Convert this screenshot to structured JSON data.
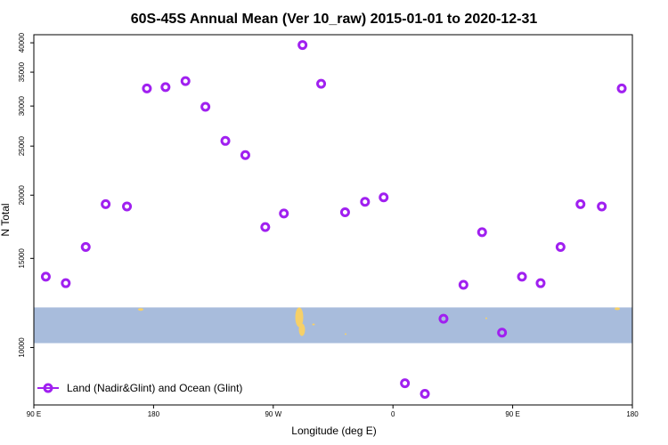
{
  "chart_data": {
    "type": "scatter",
    "title": "60S-45S Annual Mean (Ver 10_raw)   2015-01-01 to 2020-12-31",
    "xlabel": "Longitude (deg E)",
    "ylabel": "N Total",
    "x_ticks": [
      {
        "value": 90,
        "label": "90 E"
      },
      {
        "value": 180,
        "label": "180"
      },
      {
        "value": 270,
        "label": "90 W"
      },
      {
        "value": 360,
        "label": "0"
      },
      {
        "value": 450,
        "label": "90 E"
      },
      {
        "value": 540,
        "label": "180"
      }
    ],
    "y_ticks": [
      10000,
      15000,
      20000,
      25000,
      30000,
      35000,
      40000
    ],
    "xlim": [
      90,
      540
    ],
    "ylim": [
      7700,
      41500
    ],
    "y_scale": "log",
    "map_band_range": [
      10200,
      12000
    ],
    "map_band_color": "#a8bcdc",
    "land_color": "#f6d068",
    "series": [
      {
        "name": "Land (Nadir&Glint) and Ocean (Glint)",
        "color": "#a020f0",
        "points": [
          {
            "x": 99,
            "y": 13800
          },
          {
            "x": 114,
            "y": 13400
          },
          {
            "x": 129,
            "y": 15800
          },
          {
            "x": 144,
            "y": 19200
          },
          {
            "x": 160,
            "y": 19000
          },
          {
            "x": 175,
            "y": 32500
          },
          {
            "x": 189,
            "y": 32700
          },
          {
            "x": 204,
            "y": 33600
          },
          {
            "x": 219,
            "y": 29900
          },
          {
            "x": 234,
            "y": 25600
          },
          {
            "x": 249,
            "y": 24000
          },
          {
            "x": 264,
            "y": 17300
          },
          {
            "x": 278,
            "y": 18400
          },
          {
            "x": 292,
            "y": 39600
          },
          {
            "x": 306,
            "y": 33200
          },
          {
            "x": 324,
            "y": 18500
          },
          {
            "x": 339,
            "y": 19400
          },
          {
            "x": 353,
            "y": 19800
          },
          {
            "x": 369,
            "y": 8500
          },
          {
            "x": 384,
            "y": 8100
          },
          {
            "x": 398,
            "y": 11400
          },
          {
            "x": 413,
            "y": 13300
          },
          {
            "x": 427,
            "y": 16900
          },
          {
            "x": 442,
            "y": 10700
          },
          {
            "x": 457,
            "y": 13800
          },
          {
            "x": 471,
            "y": 13400
          },
          {
            "x": 486,
            "y": 15800
          },
          {
            "x": 501,
            "y": 19200
          },
          {
            "x": 517,
            "y": 19000
          },
          {
            "x": 532,
            "y": 32500
          }
        ]
      }
    ]
  }
}
